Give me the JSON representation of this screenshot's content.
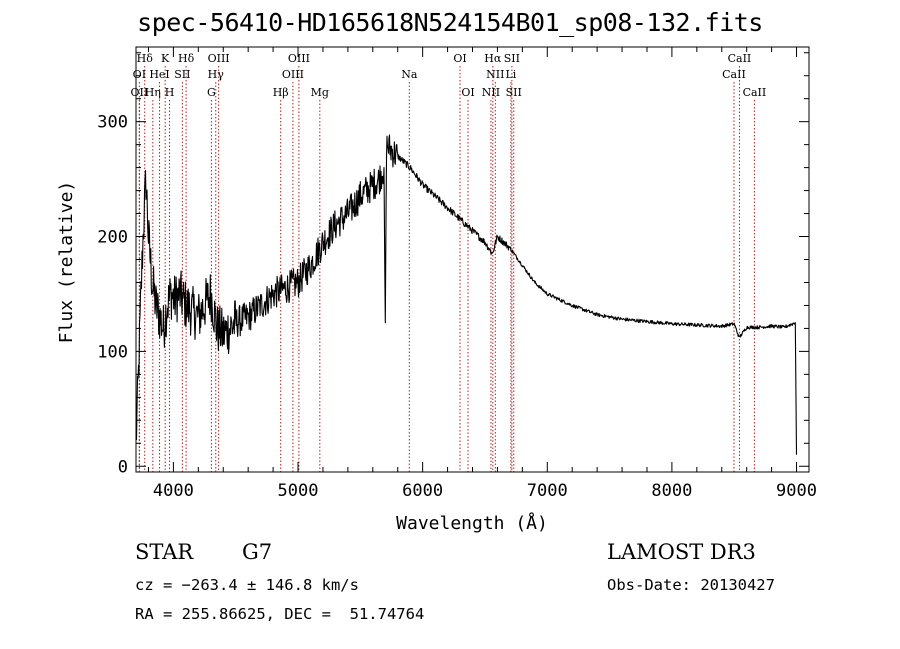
{
  "chart_data": {
    "type": "line",
    "title": "spec-56410-HD165618N524154B01_sp08-132.fits",
    "xlabel": "Wavelength (Å)",
    "ylabel": "Flux (relative)",
    "xlim": [
      3700,
      9100
    ],
    "ylim": [
      -5,
      365
    ],
    "xticks": [
      4000,
      5000,
      6000,
      7000,
      8000,
      9000
    ],
    "yticks": [
      0,
      100,
      200,
      300
    ],
    "series": [
      {
        "name": "spectrum",
        "x": [
          3700,
          3720,
          3740,
          3760,
          3780,
          3800,
          3830,
          3860,
          3890,
          3920,
          3950,
          3980,
          4010,
          4050,
          4100,
          4150,
          4200,
          4250,
          4300,
          4350,
          4400,
          4450,
          4500,
          4600,
          4700,
          4800,
          4900,
          5000,
          5100,
          5200,
          5300,
          5400,
          5500,
          5600,
          5650,
          5690,
          5700,
          5710,
          5750,
          5800,
          5850,
          5900,
          6000,
          6100,
          6200,
          6300,
          6400,
          6500,
          6560,
          6600,
          6700,
          6800,
          6900,
          7000,
          7200,
          7400,
          7600,
          7800,
          8000,
          8200,
          8400,
          8500,
          8540,
          8600,
          8700,
          8800,
          8900,
          8990,
          9000
        ],
        "y": [
          20,
          80,
          150,
          210,
          250,
          200,
          160,
          140,
          130,
          120,
          140,
          150,
          145,
          150,
          140,
          135,
          130,
          140,
          150,
          120,
          115,
          120,
          125,
          130,
          140,
          150,
          155,
          160,
          175,
          195,
          210,
          220,
          235,
          245,
          250,
          260,
          125,
          280,
          275,
          270,
          265,
          260,
          245,
          235,
          225,
          215,
          205,
          195,
          185,
          200,
          190,
          175,
          160,
          150,
          140,
          132,
          128,
          126,
          124,
          123,
          122,
          124,
          112,
          121,
          121,
          122,
          121,
          125,
          10
        ]
      }
    ],
    "line_colors": {
      "spectrum": "#000000",
      "lines": "#b22222",
      "axes": "#000000"
    },
    "spectral_lines": [
      {
        "label": "Hδ",
        "wl": 3770,
        "row": 0
      },
      {
        "label": "K",
        "wl": 3934,
        "row": 0
      },
      {
        "label": "Hδ",
        "wl": 4102,
        "row": 0
      },
      {
        "label": "OIII",
        "wl": 4363,
        "row": 0
      },
      {
        "label": "OIII",
        "wl": 5007,
        "row": 0
      },
      {
        "label": "OI",
        "wl": 6300,
        "row": 0
      },
      {
        "label": "Hα",
        "wl": 6563,
        "row": 0
      },
      {
        "label": "SII",
        "wl": 6716,
        "row": 0
      },
      {
        "label": "CaII",
        "wl": 8542,
        "row": 0
      },
      {
        "label": "OI",
        "wl": 3727,
        "row": 1
      },
      {
        "label": "HeI",
        "wl": 3889,
        "row": 1
      },
      {
        "label": "SII",
        "wl": 4072,
        "row": 1
      },
      {
        "label": "Hγ",
        "wl": 4340,
        "row": 1
      },
      {
        "label": "OIII",
        "wl": 4959,
        "row": 1
      },
      {
        "label": "Na",
        "wl": 5893,
        "row": 1
      },
      {
        "label": "NII",
        "wl": 6583,
        "row": 1
      },
      {
        "label": "Li",
        "wl": 6708,
        "row": 1
      },
      {
        "label": "CaII",
        "wl": 8498,
        "row": 1
      },
      {
        "label": "OII",
        "wl": 3727,
        "row": 2
      },
      {
        "label": "Hη",
        "wl": 3835,
        "row": 2
      },
      {
        "label": "H",
        "wl": 3969,
        "row": 2
      },
      {
        "label": "G",
        "wl": 4305,
        "row": 2
      },
      {
        "label": "Hβ",
        "wl": 4861,
        "row": 2
      },
      {
        "label": "Mg",
        "wl": 5175,
        "row": 2
      },
      {
        "label": "OI",
        "wl": 6364,
        "row": 2
      },
      {
        "label": "NII",
        "wl": 6548,
        "row": 2
      },
      {
        "label": "SII",
        "wl": 6731,
        "row": 2
      },
      {
        "label": "CaII",
        "wl": 8662,
        "row": 2
      }
    ]
  },
  "info": {
    "object_class": "STAR",
    "subclass": "G7",
    "survey": "LAMOST DR3",
    "redshift": "cz = −263.4 ± 146.8 km/s",
    "obs_date": "Obs-Date: 20130427",
    "coords": "RA = 255.86625, DEC =  51.74764"
  }
}
